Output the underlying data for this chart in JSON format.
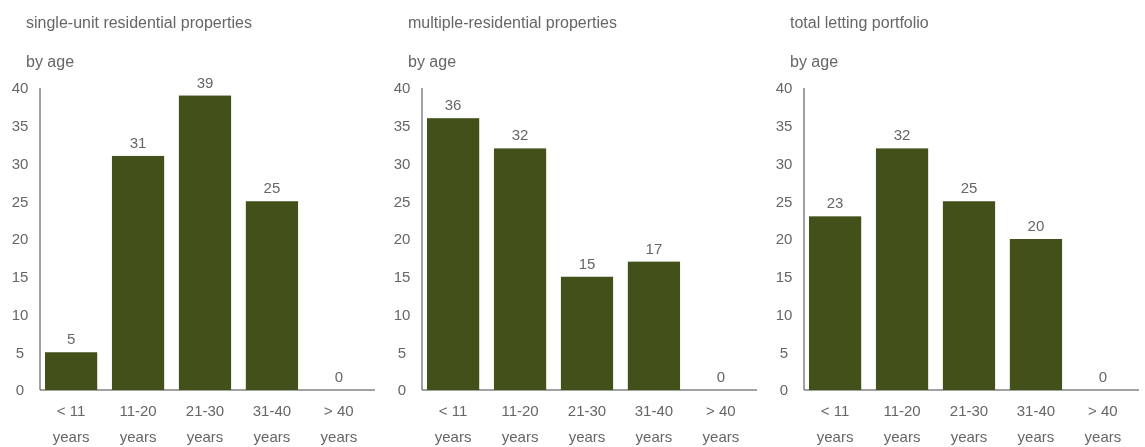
{
  "chart_data": [
    {
      "type": "bar",
      "title": "single-unit residential properties",
      "subtitle": "by age",
      "categories": [
        "< 11 years",
        "11-20 years",
        "21-30 years",
        "31-40 years",
        "> 40 years"
      ],
      "values": [
        5,
        31,
        39,
        25,
        0
      ],
      "color": "#42501a",
      "ylim": [
        0,
        40
      ],
      "yticks": [
        0,
        5,
        10,
        15,
        20,
        25,
        30,
        35,
        40
      ],
      "data_labels": true
    },
    {
      "type": "bar",
      "title": "multiple-residential properties",
      "subtitle": "by age",
      "categories": [
        "< 11 years",
        "11-20 years",
        "21-30 years",
        "31-40 years",
        "> 40 years"
      ],
      "values": [
        36,
        32,
        15,
        17,
        0
      ],
      "color": "#42501a",
      "ylim": [
        0,
        40
      ],
      "yticks": [
        0,
        5,
        10,
        15,
        20,
        25,
        30,
        35,
        40
      ],
      "data_labels": true
    },
    {
      "type": "bar",
      "title": "total letting portfolio",
      "subtitle": "by age",
      "categories": [
        "< 11 years",
        "11-20 years",
        "21-30 years",
        "31-40 years",
        "> 40 years"
      ],
      "values": [
        23,
        32,
        25,
        20,
        0
      ],
      "color": "#42501a",
      "ylim": [
        0,
        40
      ],
      "yticks": [
        0,
        5,
        10,
        15,
        20,
        25,
        30,
        35,
        40
      ],
      "data_labels": true
    }
  ]
}
